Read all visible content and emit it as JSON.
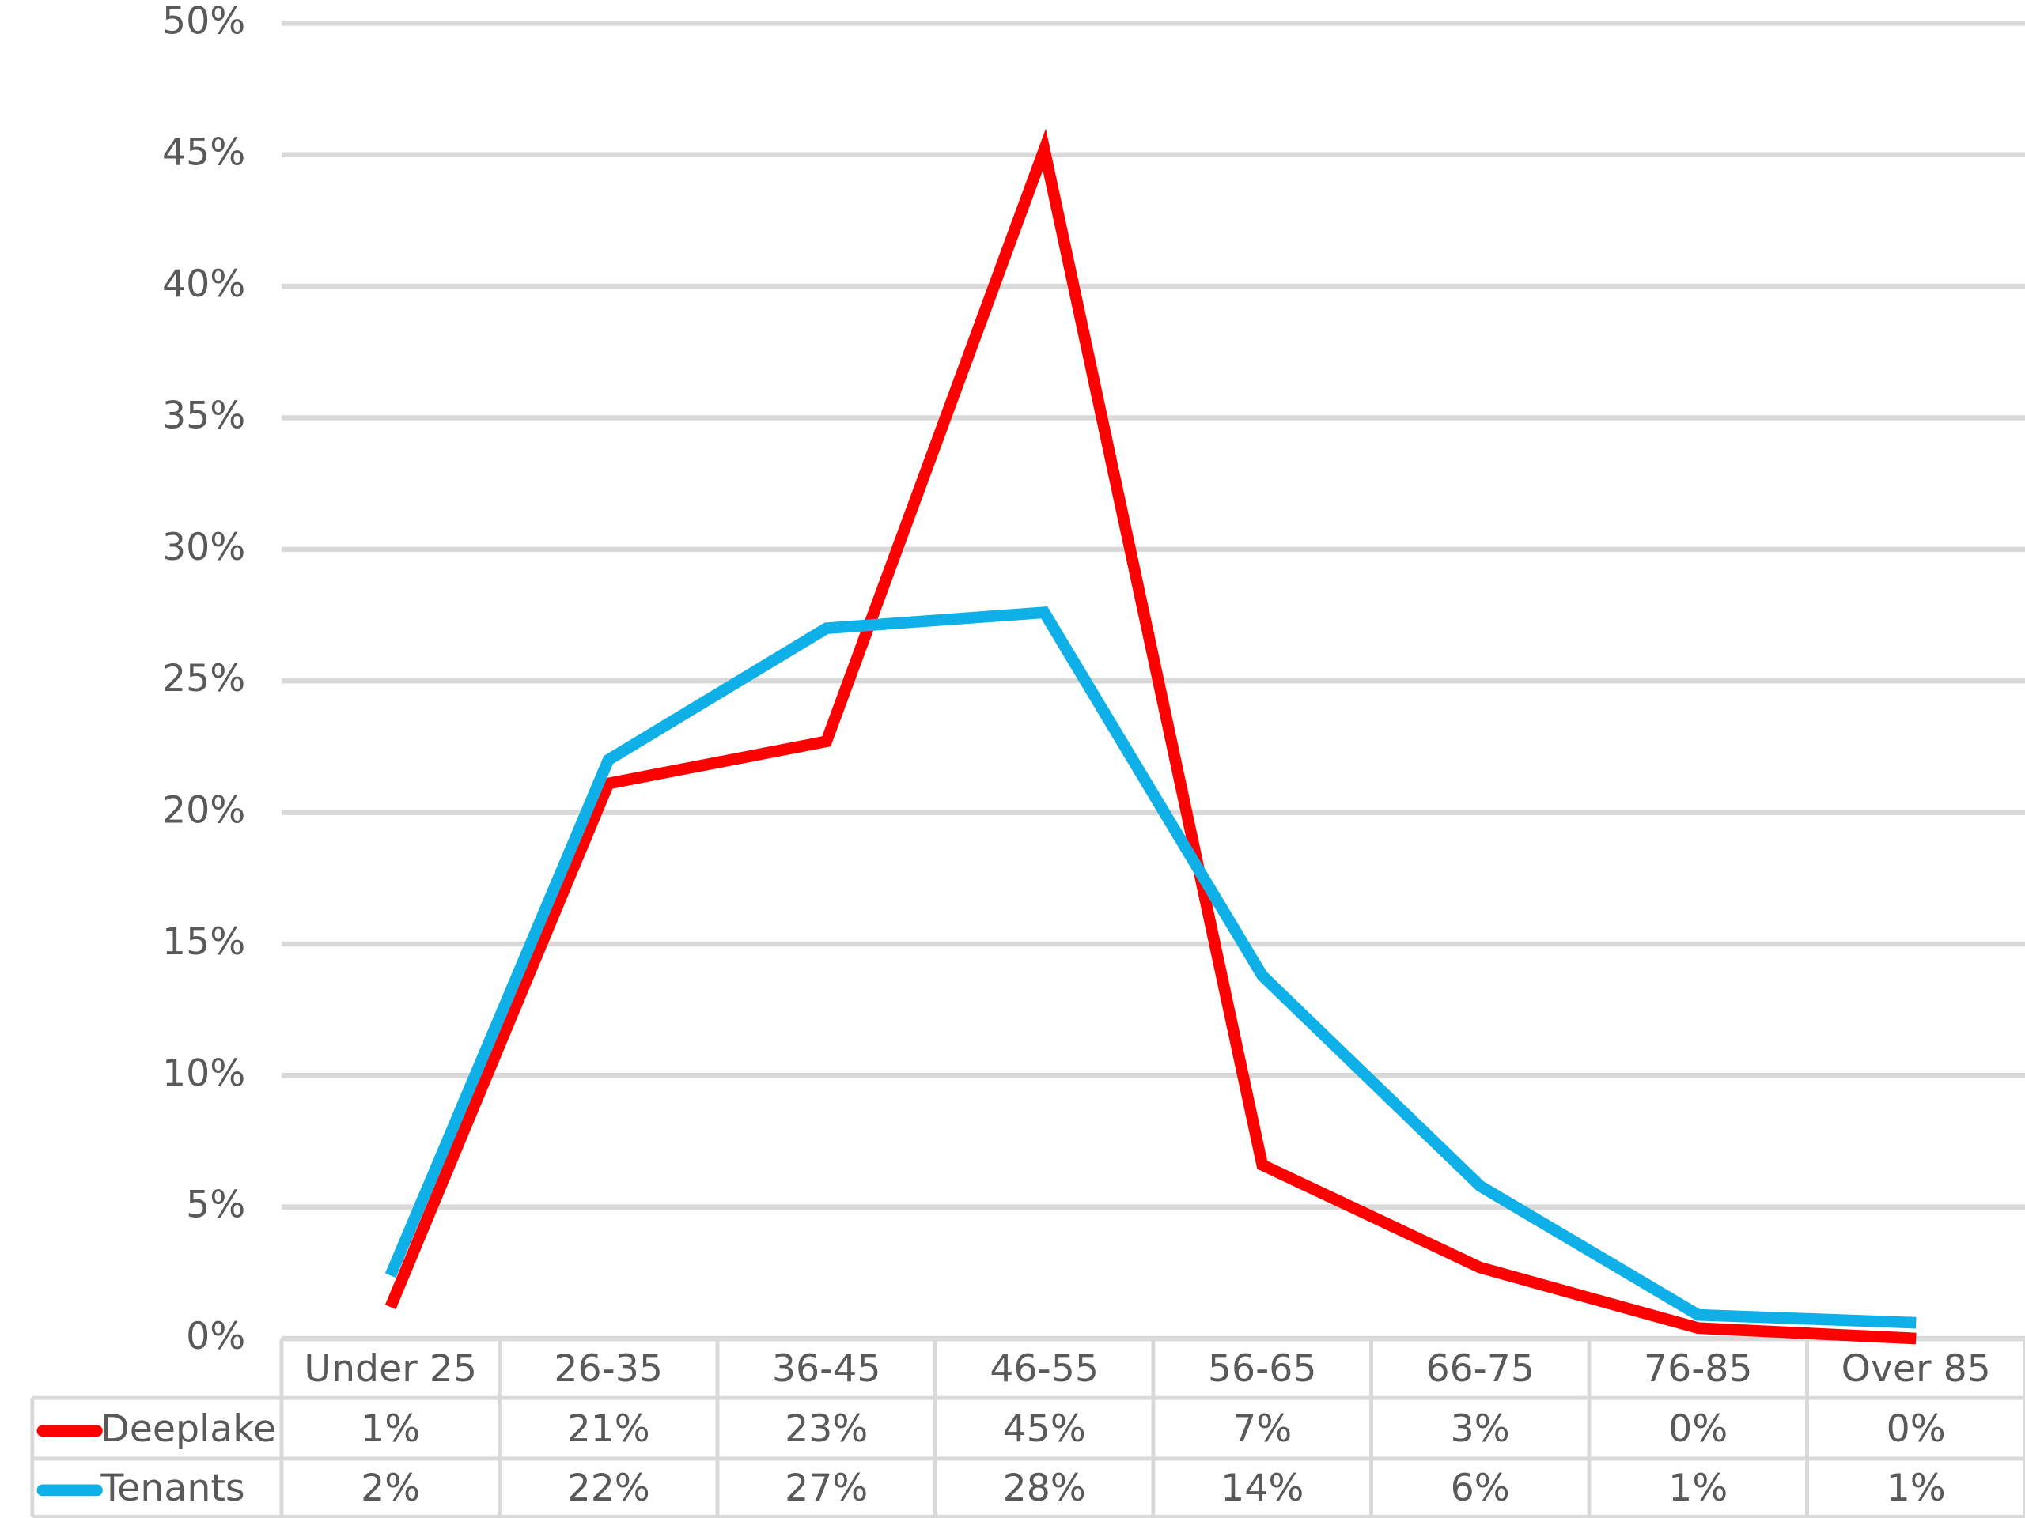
{
  "chart_data": {
    "type": "line",
    "categories": [
      "Under 25",
      "26-35",
      "36-45",
      "46-55",
      "56-65",
      "66-75",
      "76-85",
      "Over 85"
    ],
    "series": [
      {
        "name": "Deeplake",
        "color": "#ff0000",
        "values": [
          1.2,
          21.1,
          22.7,
          45.2,
          6.6,
          2.7,
          0.4,
          0.0
        ],
        "value_labels": [
          "1%",
          "21%",
          "23%",
          "45%",
          "7%",
          "3%",
          "0%",
          "0%"
        ]
      },
      {
        "name": "Tenants",
        "color": "#0fb0e8",
        "values": [
          2.4,
          22.0,
          27.0,
          27.6,
          13.8,
          5.8,
          0.9,
          0.6
        ],
        "value_labels": [
          "2%",
          "22%",
          "27%",
          "28%",
          "14%",
          "6%",
          "1%",
          "1%"
        ]
      }
    ],
    "ylim": [
      0,
      50
    ],
    "yticks": [
      {
        "value": 0,
        "label": "0%"
      },
      {
        "value": 5,
        "label": "5%"
      },
      {
        "value": 10,
        "label": "10%"
      },
      {
        "value": 15,
        "label": "15%"
      },
      {
        "value": 20,
        "label": "20%"
      },
      {
        "value": 25,
        "label": "25%"
      },
      {
        "value": 30,
        "label": "30%"
      },
      {
        "value": 35,
        "label": "35%"
      },
      {
        "value": 40,
        "label": "40%"
      },
      {
        "value": 45,
        "label": "45%"
      },
      {
        "value": 50,
        "label": "50%"
      }
    ],
    "grid": true
  }
}
